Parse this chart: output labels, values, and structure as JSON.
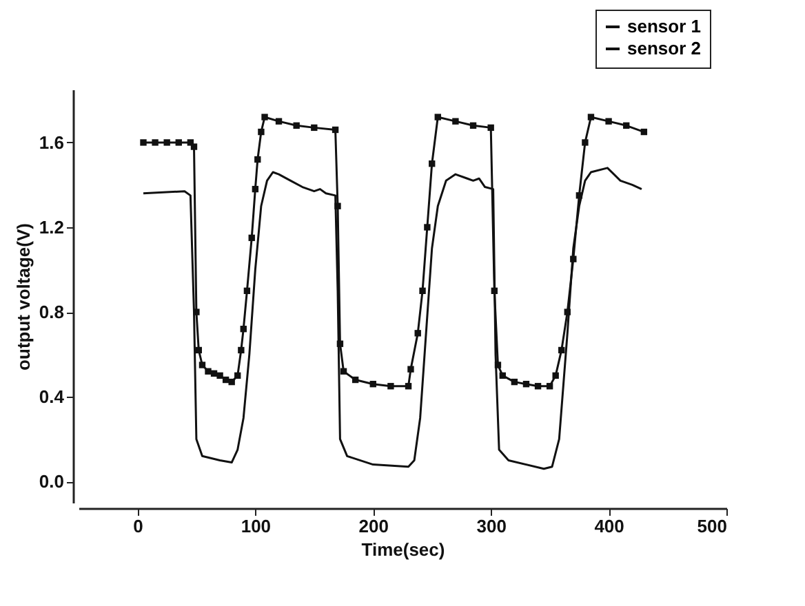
{
  "chart_data": {
    "type": "line",
    "xlabel": "Time(sec)",
    "ylabel": "output voltage(V)",
    "legend": "top right",
    "line_style": "solid",
    "xlim": [
      -50,
      500
    ],
    "xticks": [
      0,
      100,
      200,
      300,
      400,
      500
    ],
    "ylim": [
      -0.1,
      1.85
    ],
    "yticks": [
      {
        "value": 0,
        "label": "0.0"
      },
      {
        "value": 0.4,
        "label": "0.4"
      },
      {
        "value": 0.8,
        "label": "0.8"
      },
      {
        "value": 1.2,
        "label": "1.2"
      },
      {
        "value": 1.6,
        "label": "1.6"
      }
    ],
    "series": [
      {
        "name": "sensor 1",
        "color": "#111111",
        "marker": "none",
        "x": [
          5,
          40,
          45,
          48,
          50,
          55,
          70,
          80,
          85,
          90,
          95,
          100,
          105,
          110,
          115,
          120,
          130,
          140,
          150,
          155,
          160,
          168,
          170,
          172,
          178,
          200,
          230,
          235,
          240,
          245,
          250,
          255,
          262,
          270,
          280,
          285,
          290,
          295,
          302,
          304,
          307,
          315,
          345,
          352,
          358,
          365,
          370,
          375,
          380,
          385,
          399,
          410,
          420,
          428
        ],
        "values": [
          1.36,
          1.37,
          1.35,
          0.8,
          0.2,
          0.12,
          0.1,
          0.09,
          0.15,
          0.3,
          0.6,
          1.0,
          1.3,
          1.42,
          1.46,
          1.45,
          1.42,
          1.39,
          1.37,
          1.38,
          1.36,
          1.35,
          0.9,
          0.2,
          0.12,
          0.08,
          0.07,
          0.1,
          0.3,
          0.7,
          1.1,
          1.3,
          1.42,
          1.45,
          1.43,
          1.42,
          1.43,
          1.39,
          1.38,
          0.6,
          0.15,
          0.1,
          0.06,
          0.07,
          0.2,
          0.7,
          1.1,
          1.3,
          1.42,
          1.46,
          1.48,
          1.42,
          1.4,
          1.38
        ]
      },
      {
        "name": "sensor 2",
        "color": "#111111",
        "marker": "square",
        "x": [
          5,
          15,
          25,
          35,
          45,
          48,
          50,
          52,
          55,
          60,
          65,
          70,
          75,
          80,
          85,
          88,
          90,
          93,
          97,
          100,
          102,
          105,
          108,
          120,
          135,
          150,
          168,
          170,
          172,
          175,
          185,
          200,
          215,
          230,
          232,
          238,
          242,
          246,
          250,
          255,
          270,
          285,
          300,
          303,
          306,
          310,
          320,
          330,
          340,
          350,
          355,
          360,
          365,
          370,
          375,
          380,
          385,
          400,
          415,
          430
        ],
        "values": [
          1.6,
          1.6,
          1.6,
          1.6,
          1.6,
          1.58,
          0.8,
          0.62,
          0.55,
          0.52,
          0.51,
          0.5,
          0.48,
          0.47,
          0.5,
          0.62,
          0.72,
          0.9,
          1.15,
          1.38,
          1.52,
          1.65,
          1.72,
          1.7,
          1.68,
          1.67,
          1.66,
          1.3,
          0.65,
          0.52,
          0.48,
          0.46,
          0.45,
          0.45,
          0.53,
          0.7,
          0.9,
          1.2,
          1.5,
          1.72,
          1.7,
          1.68,
          1.67,
          0.9,
          0.55,
          0.5,
          0.47,
          0.46,
          0.45,
          0.45,
          0.5,
          0.62,
          0.8,
          1.05,
          1.35,
          1.6,
          1.72,
          1.7,
          1.68,
          1.65
        ]
      }
    ]
  }
}
